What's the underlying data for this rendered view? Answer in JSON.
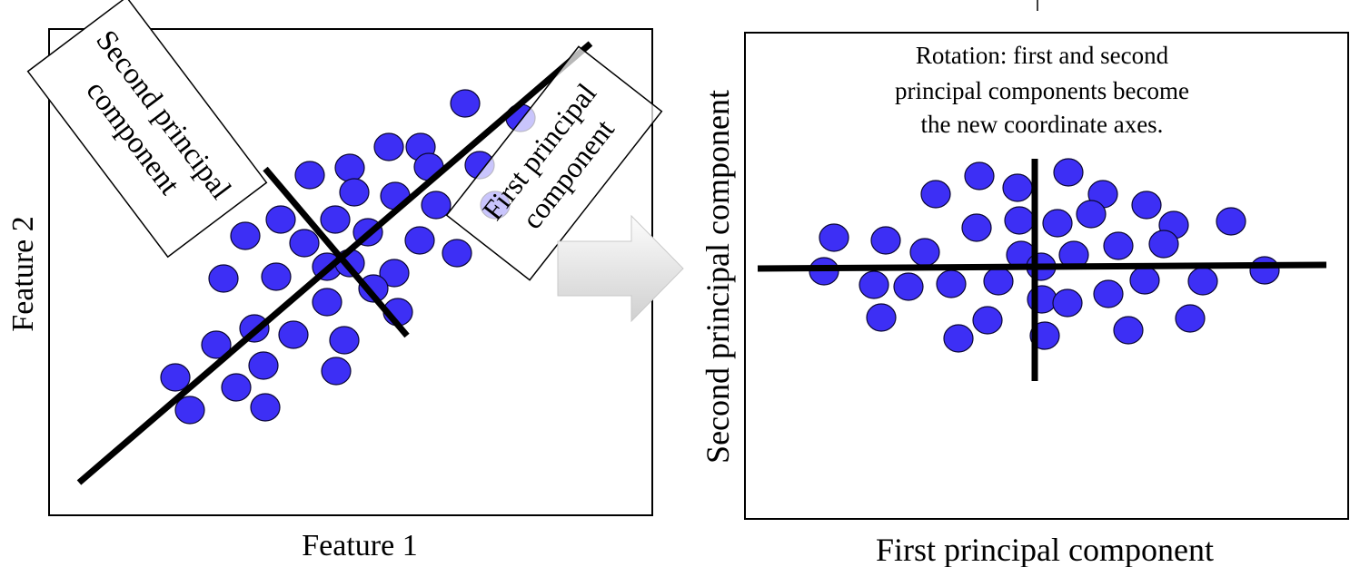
{
  "colors": {
    "point_fill": "#3d2ff5",
    "point_stroke": "#0b0733",
    "line": "#000000",
    "panel_border": "#000000",
    "arrow_light": "#fbfbfb",
    "arrow_dark": "#d2d2d2"
  },
  "left_panel": {
    "x_axis_label": "Feature 1",
    "y_axis_label": "Feature 2",
    "second_component_label": [
      "Second principal",
      "component"
    ],
    "first_component_label": [
      "First principal",
      "component"
    ]
  },
  "right_panel": {
    "caption_lines": [
      "Rotation: first and second",
      "principal components become",
      "the new coordinate axes."
    ],
    "x_axis_label": "First principal component",
    "y_axis_label": "Second principal component"
  },
  "icons": {
    "transition": "right-arrow-icon"
  }
}
